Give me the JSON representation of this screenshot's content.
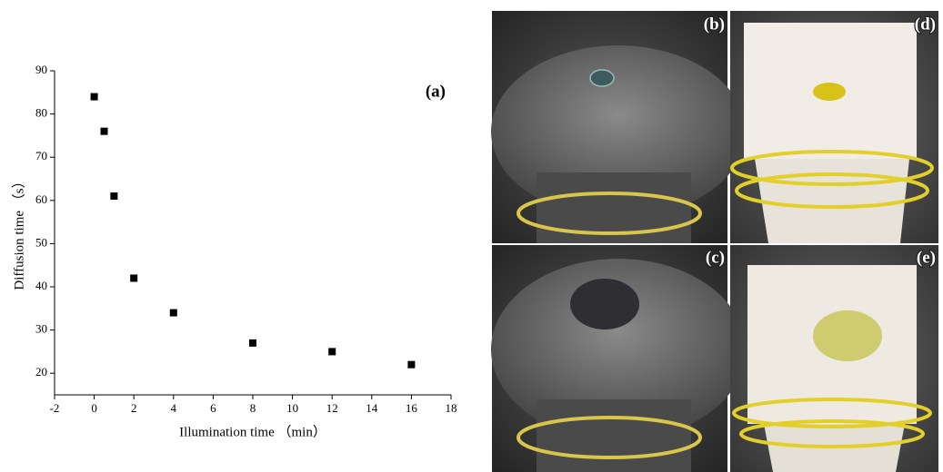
{
  "chart_data": {
    "type": "scatter",
    "panel_label": "(a)",
    "x_label": "Illumination time （min）",
    "y_label": "Diffusion time （s）",
    "x": [
      0,
      0.5,
      1,
      2,
      4,
      8,
      12,
      16
    ],
    "values": [
      84,
      76,
      61,
      42,
      34,
      27,
      25,
      22
    ],
    "color": "#000000",
    "xlim": [
      -2,
      18
    ],
    "xticks": [
      -2,
      0,
      2,
      4,
      6,
      8,
      10,
      12,
      14,
      16,
      18
    ],
    "ylim": [
      15,
      90
    ],
    "yticks": [
      20,
      30,
      40,
      50,
      60,
      70,
      80,
      90
    ]
  },
  "photos": [
    {
      "label": "(b)"
    },
    {
      "label": "(d)"
    },
    {
      "label": "(c)"
    },
    {
      "label": "(e)"
    }
  ]
}
